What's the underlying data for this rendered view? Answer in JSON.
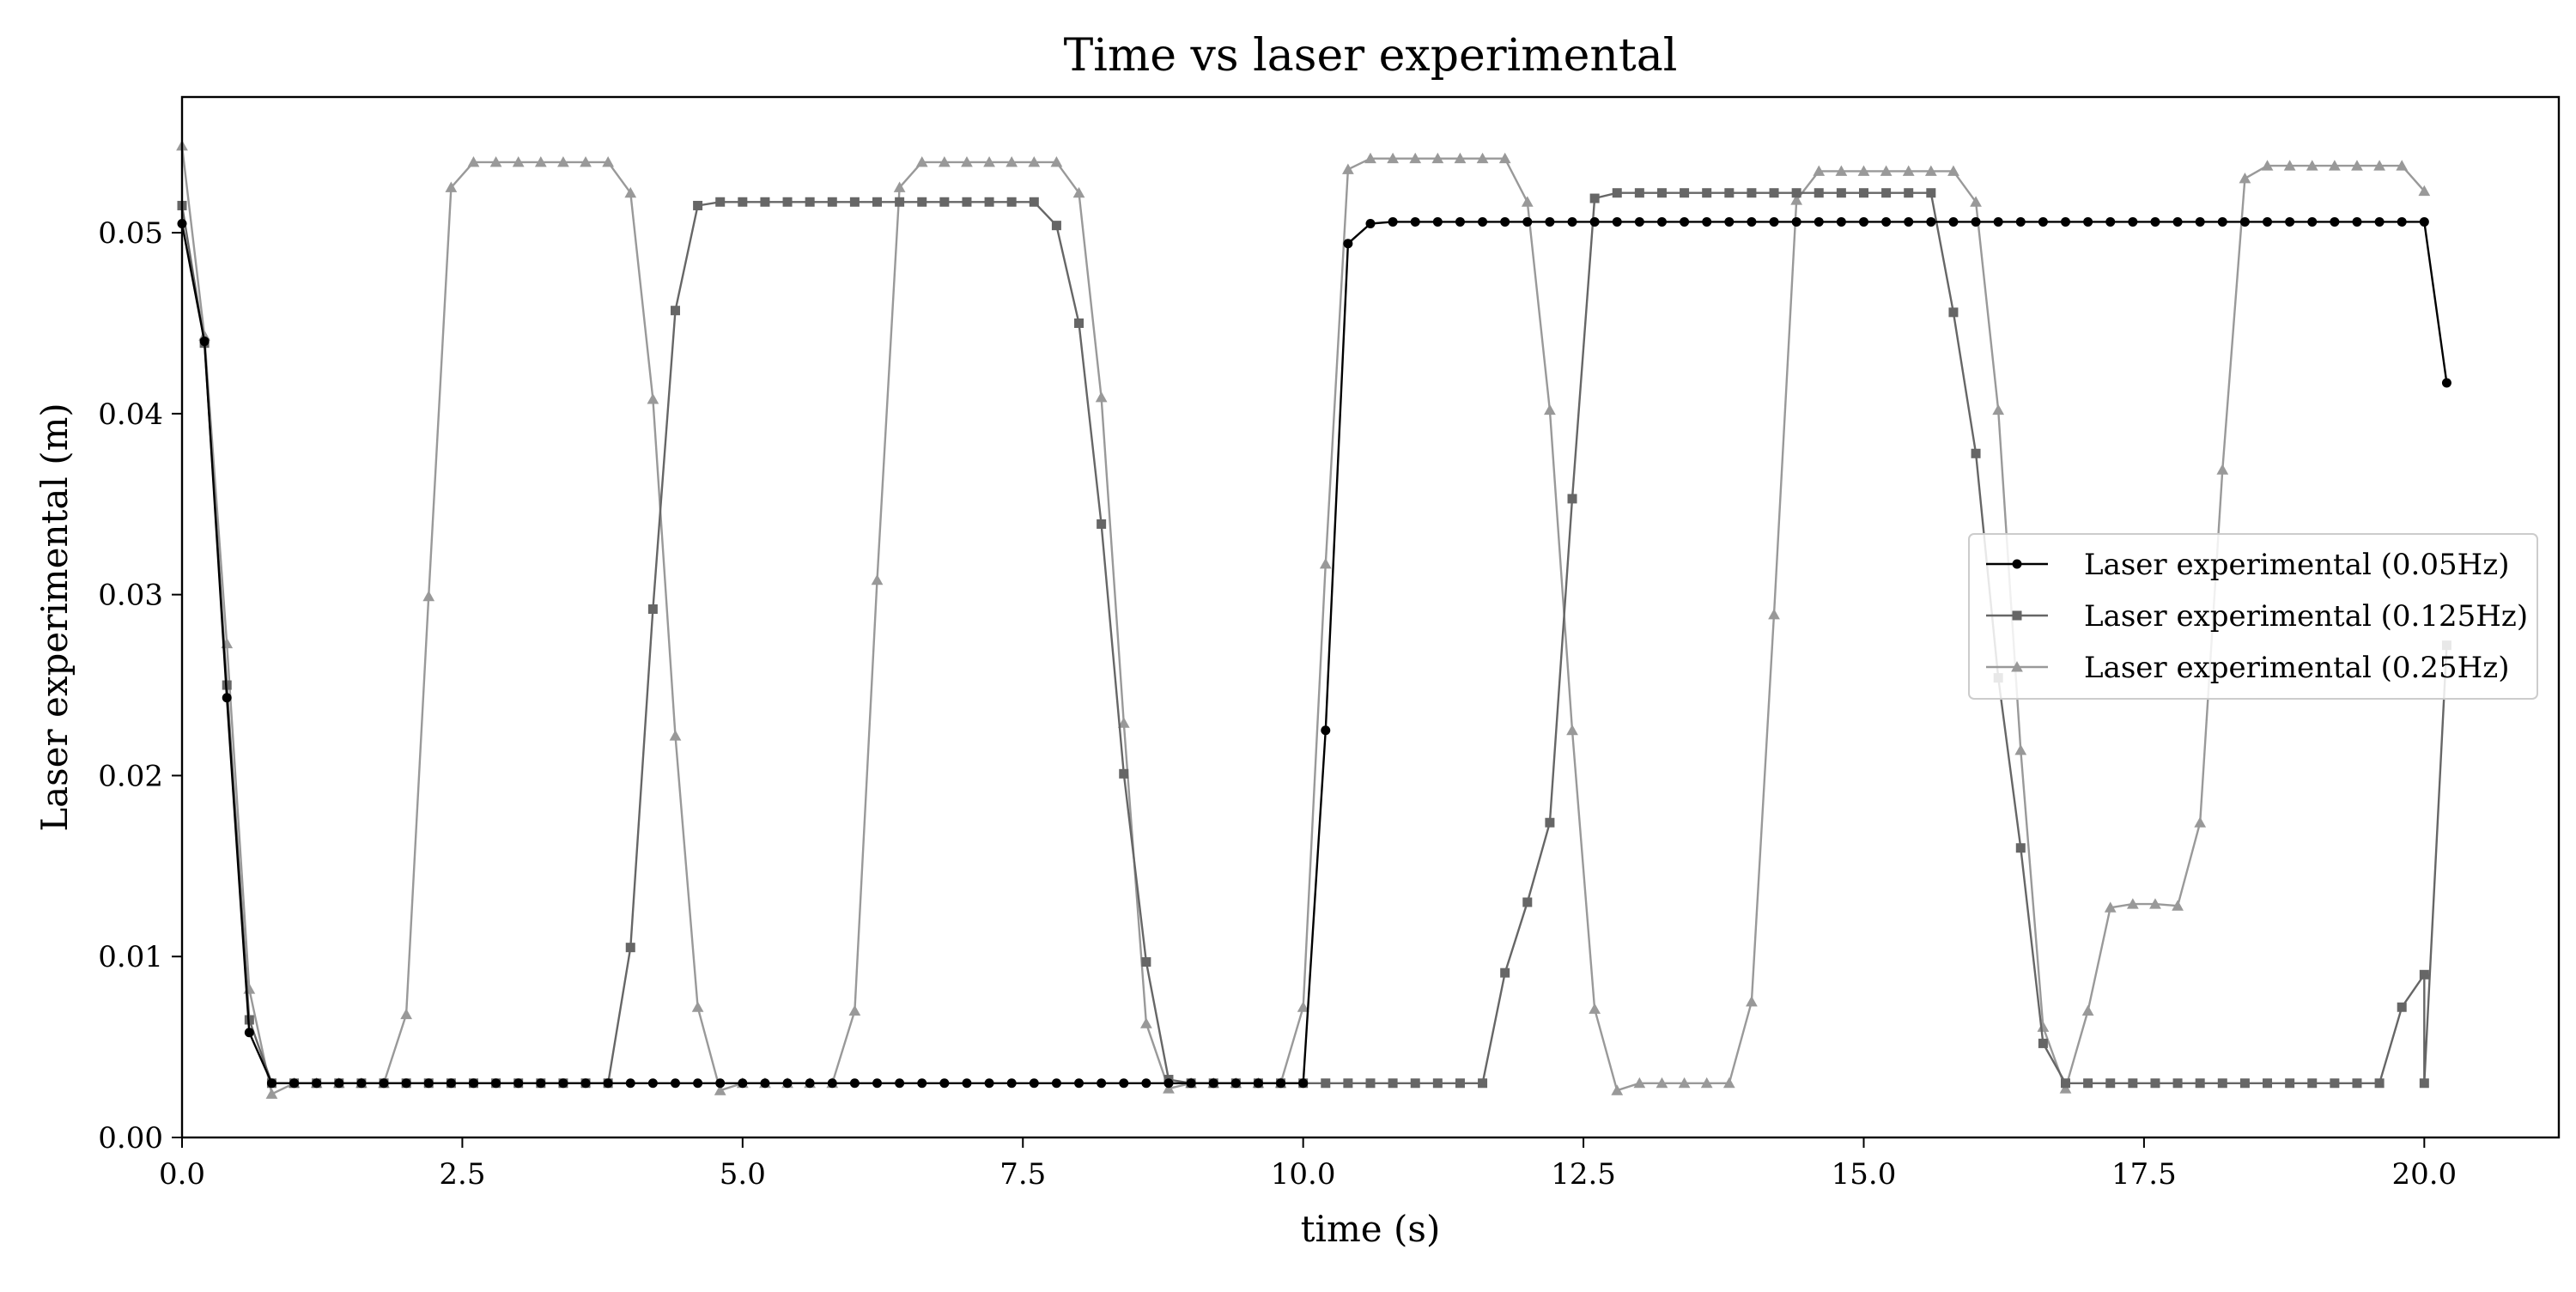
{
  "chart_data": {
    "type": "line",
    "title": "Time vs laser experimental",
    "xlabel": "time (s)",
    "ylabel": "Laser experimental (m)",
    "xlim": [
      0,
      21.2
    ],
    "ylim": [
      0,
      0.0575
    ],
    "xticks": [
      0,
      2.5,
      5,
      7.5,
      10,
      12.5,
      15,
      17.5,
      20
    ],
    "xtick_labels": [
      "0.0",
      "2.5",
      "5.0",
      "7.5",
      "10.0",
      "12.5",
      "15.0",
      "17.5",
      "20.0"
    ],
    "yticks": [
      0,
      0.01,
      0.02,
      0.03,
      0.04,
      0.05
    ],
    "ytick_labels": [
      "0.00",
      "0.01",
      "0.02",
      "0.03",
      "0.04",
      "0.05"
    ],
    "grid": false,
    "legend_position": "center-right",
    "series": [
      {
        "name": "Laser experimental (0.05Hz)",
        "color": "#000000",
        "marker": "circle",
        "x": [
          0,
          0.2,
          0.4,
          0.6,
          0.8,
          1.0,
          1.2,
          1.4,
          1.6,
          1.8,
          2.0,
          2.2,
          2.4,
          2.6,
          2.8,
          3.0,
          3.2,
          3.4,
          3.6,
          3.8,
          4.0,
          4.2,
          4.4,
          4.6,
          4.8,
          5.0,
          5.2,
          5.4,
          5.6,
          5.8,
          6.0,
          6.2,
          6.4,
          6.6,
          6.8,
          7.0,
          7.2,
          7.4,
          7.6,
          7.8,
          8.0,
          8.2,
          8.4,
          8.6,
          8.8,
          9.0,
          9.2,
          9.4,
          9.6,
          9.8,
          10.0,
          10.2,
          10.4,
          10.6,
          10.8,
          11.0,
          11.2,
          11.4,
          11.6,
          11.8,
          12.0,
          12.2,
          12.4,
          12.6,
          12.8,
          13.0,
          13.2,
          13.4,
          13.6,
          13.8,
          14.0,
          14.2,
          14.4,
          14.6,
          14.8,
          15.0,
          15.2,
          15.4,
          15.6,
          15.8,
          16.0,
          16.2,
          16.4,
          16.6,
          16.8,
          17.0,
          17.2,
          17.4,
          17.6,
          17.8,
          18.0,
          18.2,
          18.4,
          18.6,
          18.8,
          19.0,
          19.2,
          19.4,
          19.6,
          19.8,
          20.0,
          20.2
        ],
        "y": [
          0.0505,
          0.044,
          0.0243,
          0.0058,
          0.003,
          0.003,
          0.003,
          0.003,
          0.003,
          0.003,
          0.003,
          0.003,
          0.003,
          0.003,
          0.003,
          0.003,
          0.003,
          0.003,
          0.003,
          0.003,
          0.003,
          0.003,
          0.003,
          0.003,
          0.003,
          0.003,
          0.003,
          0.003,
          0.003,
          0.003,
          0.003,
          0.003,
          0.003,
          0.003,
          0.003,
          0.003,
          0.003,
          0.003,
          0.003,
          0.003,
          0.003,
          0.003,
          0.003,
          0.003,
          0.003,
          0.003,
          0.003,
          0.003,
          0.003,
          0.003,
          0.003,
          0.0225,
          0.0494,
          0.0505,
          0.0506,
          0.0506,
          0.0506,
          0.0506,
          0.0506,
          0.0506,
          0.0506,
          0.0506,
          0.0506,
          0.0506,
          0.0506,
          0.0506,
          0.0506,
          0.0506,
          0.0506,
          0.0506,
          0.0506,
          0.0506,
          0.0506,
          0.0506,
          0.0506,
          0.0506,
          0.0506,
          0.0506,
          0.0506,
          0.0506,
          0.0506,
          0.0506,
          0.0506,
          0.0506,
          0.0506,
          0.0506,
          0.0506,
          0.0506,
          0.0506,
          0.0506,
          0.0506,
          0.0506,
          0.0506,
          0.0506,
          0.0506,
          0.0506,
          0.0506,
          0.0506,
          0.0506,
          0.0506,
          0.0506,
          0.0417
        ]
      },
      {
        "name": "Laser experimental (0.125Hz)",
        "color": "#666666",
        "marker": "square",
        "x": [
          0,
          0.2,
          0.4,
          0.6,
          0.8,
          1.0,
          1.2,
          1.4,
          1.6,
          1.8,
          2.0,
          2.2,
          2.4,
          2.6,
          2.8,
          3.0,
          3.2,
          3.4,
          3.6,
          3.8,
          4.0,
          4.2,
          4.4,
          4.6,
          4.8,
          5.0,
          5.2,
          5.4,
          5.6,
          5.8,
          6.0,
          6.2,
          6.4,
          6.6,
          6.8,
          7.0,
          7.2,
          7.4,
          7.6,
          7.8,
          8.0,
          8.2,
          8.4,
          8.6,
          8.8,
          9.0,
          9.2,
          9.4,
          9.6,
          9.8,
          10.0,
          10.2,
          10.4,
          10.6,
          10.8,
          11.0,
          11.2,
          11.4,
          11.6,
          11.8,
          12.0,
          12.2,
          12.4,
          12.6,
          12.8,
          13.0,
          13.2,
          13.4,
          13.6,
          13.8,
          14.0,
          14.2,
          14.4,
          14.6,
          14.8,
          15.0,
          15.2,
          15.4,
          15.6,
          15.8,
          16.0,
          16.2,
          16.4,
          16.6,
          16.8,
          17.0,
          17.2,
          17.4,
          17.6,
          17.8,
          18.0,
          18.2,
          18.4,
          18.6,
          18.8,
          19.0,
          19.2,
          19.4,
          19.6,
          19.8,
          20.0,
          20.0,
          20.2
        ],
        "y": [
          0.0515,
          0.0439,
          0.025,
          0.0065,
          0.003,
          0.003,
          0.003,
          0.003,
          0.003,
          0.003,
          0.003,
          0.003,
          0.003,
          0.003,
          0.003,
          0.003,
          0.003,
          0.003,
          0.003,
          0.003,
          0.0105,
          0.0292,
          0.0457,
          0.0515,
          0.0517,
          0.0517,
          0.0517,
          0.0517,
          0.0517,
          0.0517,
          0.0517,
          0.0517,
          0.0517,
          0.0517,
          0.0517,
          0.0517,
          0.0517,
          0.0517,
          0.0517,
          0.0504,
          0.045,
          0.0339,
          0.0201,
          0.0097,
          0.0032,
          0.003,
          0.003,
          0.003,
          0.003,
          0.003,
          0.003,
          0.003,
          0.003,
          0.003,
          0.003,
          0.003,
          0.003,
          0.003,
          0.003,
          0.0091,
          0.013,
          0.0174,
          0.0353,
          0.0519,
          0.0522,
          0.0522,
          0.0522,
          0.0522,
          0.0522,
          0.0522,
          0.0522,
          0.0522,
          0.0522,
          0.0522,
          0.0522,
          0.0522,
          0.0522,
          0.0522,
          0.0522,
          0.0456,
          0.0378,
          0.0254,
          0.016,
          0.0052,
          0.003,
          0.003,
          0.003,
          0.003,
          0.003,
          0.003,
          0.003,
          0.003,
          0.003,
          0.003,
          0.003,
          0.003,
          0.003,
          0.003,
          0.003,
          0.0072,
          0.009,
          0.003,
          0.0272
        ]
      },
      {
        "name": "Laser experimental (0.25Hz)",
        "color": "#999999",
        "marker": "triangle",
        "x": [
          0,
          0.2,
          0.4,
          0.6,
          0.8,
          1.0,
          1.2,
          1.4,
          1.6,
          1.8,
          2.0,
          2.2,
          2.4,
          2.6,
          2.8,
          3.0,
          3.2,
          3.4,
          3.6,
          3.8,
          4.0,
          4.2,
          4.4,
          4.6,
          4.8,
          5.0,
          5.2,
          5.4,
          5.6,
          5.8,
          6.0,
          6.2,
          6.4,
          6.6,
          6.8,
          7.0,
          7.2,
          7.4,
          7.6,
          7.8,
          8.0,
          8.2,
          8.4,
          8.6,
          8.8,
          9.0,
          9.2,
          9.4,
          9.6,
          9.8,
          10.0,
          10.2,
          10.4,
          10.6,
          10.8,
          11.0,
          11.2,
          11.4,
          11.6,
          11.8,
          12.0,
          12.2,
          12.4,
          12.6,
          12.8,
          13.0,
          13.2,
          13.4,
          13.6,
          13.8,
          14.0,
          14.2,
          14.4,
          14.6,
          14.8,
          15.0,
          15.2,
          15.4,
          15.6,
          15.8,
          16.0,
          16.2,
          16.4,
          16.6,
          16.8,
          17.0,
          17.2,
          17.4,
          17.6,
          17.8,
          18.0,
          18.2,
          18.4,
          18.6,
          18.8,
          19.0,
          19.2,
          19.4,
          19.6,
          19.8,
          20.0
        ],
        "y": [
          0.0548,
          0.0443,
          0.0273,
          0.0082,
          0.0024,
          0.003,
          0.003,
          0.003,
          0.003,
          0.003,
          0.0068,
          0.0299,
          0.0525,
          0.0539,
          0.0539,
          0.0539,
          0.0539,
          0.0539,
          0.0539,
          0.0539,
          0.0522,
          0.0408,
          0.0222,
          0.0072,
          0.0026,
          0.003,
          0.003,
          0.003,
          0.003,
          0.003,
          0.007,
          0.0308,
          0.0525,
          0.0539,
          0.0539,
          0.0539,
          0.0539,
          0.0539,
          0.0539,
          0.0539,
          0.0522,
          0.0409,
          0.0229,
          0.0063,
          0.0027,
          0.003,
          0.003,
          0.003,
          0.003,
          0.003,
          0.0072,
          0.0317,
          0.0535,
          0.0541,
          0.0541,
          0.0541,
          0.0541,
          0.0541,
          0.0541,
          0.0541,
          0.0517,
          0.0402,
          0.0225,
          0.0071,
          0.0026,
          0.003,
          0.003,
          0.003,
          0.003,
          0.003,
          0.0075,
          0.0289,
          0.0518,
          0.0534,
          0.0534,
          0.0534,
          0.0534,
          0.0534,
          0.0534,
          0.0534,
          0.0517,
          0.0402,
          0.0214,
          0.0061,
          0.0027,
          0.007,
          0.0127,
          0.0129,
          0.0129,
          0.0128,
          0.0174,
          0.0369,
          0.053,
          0.0537,
          0.0537,
          0.0537,
          0.0537,
          0.0537,
          0.0537,
          0.0537,
          0.0523
        ]
      }
    ]
  }
}
